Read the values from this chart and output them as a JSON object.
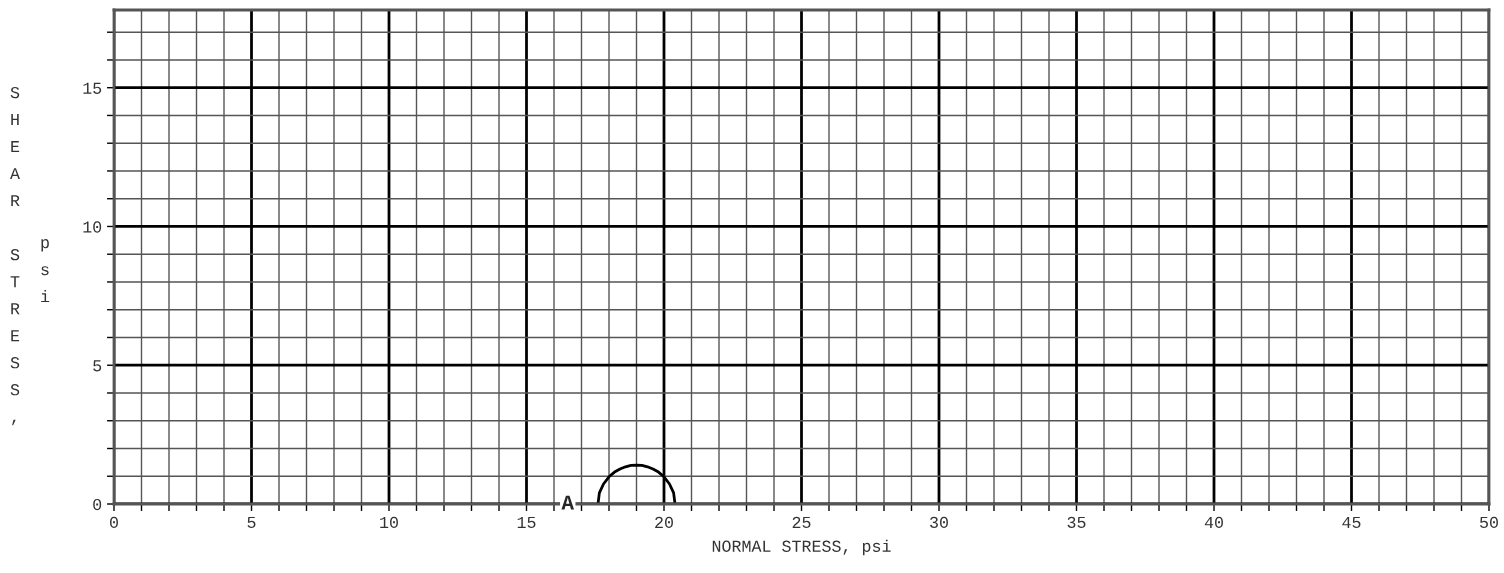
{
  "chart_data": {
    "type": "line",
    "xlabel": "NORMAL STRESS, psi",
    "ylabel": "SHEAR STRESS, psi",
    "xlim": [
      0,
      50
    ],
    "ylim": [
      0,
      17.8
    ],
    "xticks": [
      0,
      {
        "value": 1,
        "label": null
      },
      {
        "value": 2,
        "label": null
      },
      {
        "value": 3,
        "label": null
      },
      {
        "value": 4,
        "label": null
      },
      5,
      {
        "value": 6,
        "label": null
      },
      {
        "value": 7,
        "label": null
      },
      {
        "value": 8,
        "label": null
      },
      {
        "value": 9,
        "label": null
      },
      10,
      {
        "value": 11,
        "label": null
      },
      {
        "value": 12,
        "label": null
      },
      {
        "value": 13,
        "label": null
      },
      {
        "value": 14,
        "label": null
      },
      15,
      {
        "value": 16,
        "label": null
      },
      {
        "value": 17,
        "label": null
      },
      {
        "value": 18,
        "label": null
      },
      {
        "value": 19,
        "label": null
      },
      20,
      {
        "value": 21,
        "label": null
      },
      {
        "value": 22,
        "label": null
      },
      {
        "value": 23,
        "label": null
      },
      {
        "value": 24,
        "label": null
      },
      25,
      {
        "value": 26,
        "label": null
      },
      {
        "value": 27,
        "label": null
      },
      {
        "value": 28,
        "label": null
      },
      {
        "value": 29,
        "label": null
      },
      30,
      {
        "value": 31,
        "label": null
      },
      {
        "value": 32,
        "label": null
      },
      {
        "value": 33,
        "label": null
      },
      {
        "value": 34,
        "label": null
      },
      35,
      {
        "value": 36,
        "label": null
      },
      {
        "value": 37,
        "label": null
      },
      {
        "value": 38,
        "label": null
      },
      {
        "value": 39,
        "label": null
      },
      40,
      {
        "value": 41,
        "label": null
      },
      {
        "value": 42,
        "label": null
      },
      {
        "value": 43,
        "label": null
      },
      {
        "value": 44,
        "label": null
      },
      45,
      {
        "value": 46,
        "label": null
      },
      {
        "value": 47,
        "label": null
      },
      {
        "value": 48,
        "label": null
      },
      {
        "value": 49,
        "label": null
      },
      50
    ],
    "yticks": [
      0,
      {
        "value": 1,
        "label": null
      },
      {
        "value": 2,
        "label": null
      },
      {
        "value": 3,
        "label": null
      },
      {
        "value": 4,
        "label": null
      },
      5,
      {
        "value": 6,
        "label": null
      },
      {
        "value": 7,
        "label": null
      },
      {
        "value": 8,
        "label": null
      },
      {
        "value": 9,
        "label": null
      },
      10,
      {
        "value": 11,
        "label": null
      },
      {
        "value": 12,
        "label": null
      },
      {
        "value": 13,
        "label": null
      },
      {
        "value": 14,
        "label": null
      },
      15,
      {
        "value": 16,
        "label": null
      },
      {
        "value": 17,
        "label": null
      }
    ],
    "grid": true,
    "series": [
      {
        "color": "#000000",
        "x": [
          17.6,
          17.65,
          17.8,
          18.0,
          18.2,
          18.4,
          18.6,
          18.8,
          19.0,
          19.2,
          19.4,
          19.6,
          19.8,
          20.0,
          20.2,
          20.35,
          20.4
        ],
        "values": [
          0,
          0.4,
          0.72,
          0.98,
          1.15,
          1.26,
          1.34,
          1.39,
          1.4,
          1.39,
          1.34,
          1.26,
          1.15,
          0.98,
          0.72,
          0.4,
          0
        ]
      }
    ],
    "annotations": [
      "A"
    ]
  }
}
